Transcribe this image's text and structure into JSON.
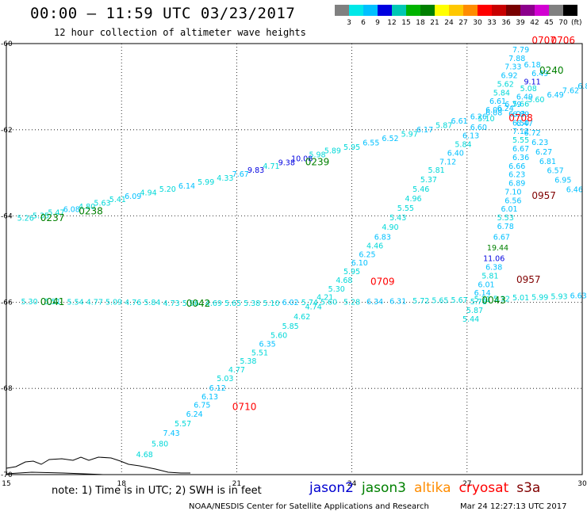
{
  "header": {
    "title": "00:00 – 11:59 UTC 03/23/2017",
    "subtitle": "12 hour collection of altimeter wave heights"
  },
  "legend": {
    "colors": [
      "#808080",
      "#00e8e8",
      "#00c0ff",
      "#0000e0",
      "#00c8b4",
      "#00b400",
      "#008000",
      "#ffff00",
      "#ffc800",
      "#ff8c00",
      "#ff0000",
      "#c80000",
      "#780000",
      "#8c008c",
      "#d200d2",
      "#808080",
      "#000000"
    ],
    "labels": [
      "3",
      "6",
      "9",
      "12",
      "15",
      "18",
      "21",
      "24",
      "27",
      "30",
      "33",
      "36",
      "39",
      "42",
      "45",
      "70"
    ],
    "unit": "(ft)"
  },
  "axes": {
    "lon_labels": [
      {
        "value": "15",
        "lon": 15
      },
      {
        "value": "18",
        "lon": 18
      },
      {
        "value": "21",
        "lon": 21
      },
      {
        "value": "24",
        "lon": 24
      },
      {
        "value": "27",
        "lon": 27
      },
      {
        "value": "30",
        "lon": 30
      }
    ],
    "lat_labels": [
      {
        "value": "-60",
        "lat": -60
      },
      {
        "value": "-62",
        "lat": -62
      },
      {
        "value": "-64",
        "lat": -64
      },
      {
        "value": "-66",
        "lat": -66
      },
      {
        "value": "-68",
        "lat": -68
      },
      {
        "value": "-70",
        "lat": -70
      }
    ]
  },
  "tracks": [
    {
      "satellite": "jason3",
      "points": [
        {
          "lon": 15.5,
          "lat": -64.11,
          "v": "5.26"
        },
        {
          "lon": 15.9,
          "lat": -64.05,
          "v": "5.35"
        },
        {
          "lon": 16.3,
          "lat": -63.98,
          "v": "5.47"
        },
        {
          "lon": 16.7,
          "lat": -63.91,
          "v": "6.08"
        },
        {
          "lon": 17.1,
          "lat": -63.84,
          "v": "4.80"
        },
        {
          "lon": 17.5,
          "lat": -63.76,
          "v": "5.63"
        },
        {
          "lon": 17.9,
          "lat": -63.68,
          "v": "5.41"
        },
        {
          "lon": 18.3,
          "lat": -63.6,
          "v": "6.09"
        },
        {
          "lon": 18.7,
          "lat": -63.52,
          "v": "4.94"
        },
        {
          "lon": 19.2,
          "lat": -63.44,
          "v": "5.20"
        },
        {
          "lon": 19.7,
          "lat": -63.36,
          "v": "6.14"
        },
        {
          "lon": 20.2,
          "lat": -63.27,
          "v": "5.99"
        },
        {
          "lon": 20.7,
          "lat": -63.18,
          "v": "4.33"
        },
        {
          "lon": 21.1,
          "lat": -63.09,
          "v": "7.67"
        },
        {
          "lon": 21.5,
          "lat": -63.0,
          "v": "9.83"
        },
        {
          "lon": 21.9,
          "lat": -62.9,
          "v": "4.71"
        },
        {
          "lon": 22.3,
          "lat": -62.82,
          "v": "9.38"
        },
        {
          "lon": 22.7,
          "lat": -62.73,
          "v": "10.08"
        },
        {
          "lon": 23.1,
          "lat": -62.64,
          "v": "5.98"
        },
        {
          "lon": 23.5,
          "lat": -62.55,
          "v": "5.89"
        },
        {
          "lon": 24.0,
          "lat": -62.46,
          "v": "5.95"
        },
        {
          "lon": 24.5,
          "lat": -62.36,
          "v": "6.55"
        },
        {
          "lon": 25.0,
          "lat": -62.26,
          "v": "6.52"
        },
        {
          "lon": 25.5,
          "lat": -62.16,
          "v": "5.97"
        },
        {
          "lon": 25.9,
          "lat": -62.06,
          "v": "6.17"
        },
        {
          "lon": 26.4,
          "lat": -61.96,
          "v": "5.87"
        },
        {
          "lon": 26.8,
          "lat": -61.86,
          "v": "6.61"
        },
        {
          "lon": 27.3,
          "lat": -61.76,
          "v": "6.26"
        },
        {
          "lon": 27.7,
          "lat": -61.66,
          "v": "6.08"
        },
        {
          "lon": 28.0,
          "lat": -61.56,
          "v": "6.24"
        },
        {
          "lon": 28.4,
          "lat": -61.46,
          "v": "5.66"
        },
        {
          "lon": 28.8,
          "lat": -61.36,
          "v": "5.60"
        },
        {
          "lon": 29.3,
          "lat": -61.25,
          "v": "6.49"
        },
        {
          "lon": 29.7,
          "lat": -61.15,
          "v": "7.62"
        },
        {
          "lon": 30.1,
          "lat": -61.05,
          "v": "6.80"
        }
      ]
    },
    {
      "satellite": "jason3",
      "points": [
        {
          "lon": 15.6,
          "lat": -66.05,
          "v": "5.30"
        },
        {
          "lon": 16.2,
          "lat": -66.05,
          "v": "5.51"
        },
        {
          "lon": 16.8,
          "lat": -66.06,
          "v": "5.54"
        },
        {
          "lon": 17.3,
          "lat": -66.06,
          "v": "4.77"
        },
        {
          "lon": 17.8,
          "lat": -66.06,
          "v": "5.09"
        },
        {
          "lon": 18.3,
          "lat": -66.07,
          "v": "4.76"
        },
        {
          "lon": 18.8,
          "lat": -66.07,
          "v": "5.84"
        },
        {
          "lon": 19.3,
          "lat": -66.08,
          "v": "4.73"
        },
        {
          "lon": 19.8,
          "lat": -66.08,
          "v": "5.96"
        },
        {
          "lon": 20.4,
          "lat": -66.08,
          "v": "4.69"
        },
        {
          "lon": 20.9,
          "lat": -66.08,
          "v": "5.65"
        },
        {
          "lon": 21.4,
          "lat": -66.08,
          "v": "5.38"
        },
        {
          "lon": 21.9,
          "lat": -66.08,
          "v": "5.10"
        },
        {
          "lon": 22.4,
          "lat": -66.07,
          "v": "6.02"
        },
        {
          "lon": 22.9,
          "lat": -66.07,
          "v": "5.74"
        },
        {
          "lon": 23.4,
          "lat": -66.06,
          "v": "5.60"
        },
        {
          "lon": 24.0,
          "lat": -66.06,
          "v": "5.28"
        },
        {
          "lon": 24.6,
          "lat": -66.05,
          "v": "6.34"
        },
        {
          "lon": 25.2,
          "lat": -66.04,
          "v": "6.31"
        },
        {
          "lon": 25.8,
          "lat": -66.03,
          "v": "5.72"
        },
        {
          "lon": 26.3,
          "lat": -66.02,
          "v": "5.65"
        },
        {
          "lon": 26.8,
          "lat": -66.01,
          "v": "5.67"
        },
        {
          "lon": 27.4,
          "lat": -65.99,
          "v": "5.71"
        },
        {
          "lon": 27.9,
          "lat": -65.98,
          "v": "5.32"
        },
        {
          "lon": 28.4,
          "lat": -65.96,
          "v": "5.01"
        },
        {
          "lon": 28.9,
          "lat": -65.95,
          "v": "5.99"
        },
        {
          "lon": 29.4,
          "lat": -65.93,
          "v": "5.93"
        },
        {
          "lon": 29.9,
          "lat": -65.91,
          "v": "6.63"
        }
      ]
    },
    {
      "satellite": "jason3",
      "points": [
        {
          "lon": 18.6,
          "lat": -69.6,
          "v": "4.68"
        },
        {
          "lon": 19.0,
          "lat": -69.35,
          "v": "5.80"
        },
        {
          "lon": 19.3,
          "lat": -69.1,
          "v": "7.43"
        },
        {
          "lon": 19.6,
          "lat": -68.88,
          "v": "5.57"
        },
        {
          "lon": 19.9,
          "lat": -68.66,
          "v": "6.24"
        },
        {
          "lon": 20.1,
          "lat": -68.45,
          "v": "6.75"
        },
        {
          "lon": 20.3,
          "lat": -68.25,
          "v": "6.13"
        },
        {
          "lon": 20.5,
          "lat": -68.05,
          "v": "6.12"
        },
        {
          "lon": 20.7,
          "lat": -67.83,
          "v": "5.03"
        },
        {
          "lon": 21.0,
          "lat": -67.63,
          "v": "4.77"
        },
        {
          "lon": 21.3,
          "lat": -67.43,
          "v": "5.38"
        },
        {
          "lon": 21.6,
          "lat": -67.23,
          "v": "5.51"
        },
        {
          "lon": 21.8,
          "lat": -67.03,
          "v": "6.35"
        },
        {
          "lon": 22.1,
          "lat": -66.83,
          "v": "5.60"
        },
        {
          "lon": 22.4,
          "lat": -66.62,
          "v": "5.85"
        },
        {
          "lon": 22.7,
          "lat": -66.4,
          "v": "4.62"
        },
        {
          "lon": 23.0,
          "lat": -66.17,
          "v": "4.74"
        },
        {
          "lon": 23.3,
          "lat": -65.95,
          "v": "4.21"
        },
        {
          "lon": 23.6,
          "lat": -65.75,
          "v": "5.30"
        },
        {
          "lon": 23.8,
          "lat": -65.55,
          "v": "4.68"
        },
        {
          "lon": 24.0,
          "lat": -65.35,
          "v": "5.95"
        },
        {
          "lon": 24.2,
          "lat": -65.15,
          "v": "6.10"
        },
        {
          "lon": 24.4,
          "lat": -64.95,
          "v": "6.25"
        },
        {
          "lon": 24.6,
          "lat": -64.75,
          "v": "4.46"
        },
        {
          "lon": 24.8,
          "lat": -64.55,
          "v": "6.83"
        },
        {
          "lon": 25.0,
          "lat": -64.32,
          "v": "4.90"
        },
        {
          "lon": 25.2,
          "lat": -64.1,
          "v": "5.43"
        },
        {
          "lon": 25.4,
          "lat": -63.88,
          "v": "5.55"
        },
        {
          "lon": 25.6,
          "lat": -63.66,
          "v": "4.96"
        },
        {
          "lon": 25.8,
          "lat": -63.44,
          "v": "5.46"
        },
        {
          "lon": 26.0,
          "lat": -63.22,
          "v": "5.37"
        },
        {
          "lon": 26.2,
          "lat": -63.0,
          "v": "5.81"
        },
        {
          "lon": 26.5,
          "lat": -62.8,
          "v": "7.12"
        },
        {
          "lon": 26.7,
          "lat": -62.6,
          "v": "6.40"
        },
        {
          "lon": 26.9,
          "lat": -62.4,
          "v": "5.84"
        },
        {
          "lon": 27.1,
          "lat": -62.2,
          "v": "6.13"
        },
        {
          "lon": 27.3,
          "lat": -62.0,
          "v": "6.60"
        },
        {
          "lon": 27.5,
          "lat": -61.8,
          "v": "5.10"
        },
        {
          "lon": 27.7,
          "lat": -61.6,
          "v": "6.00"
        },
        {
          "lon": 27.8,
          "lat": -61.4,
          "v": "6.61"
        },
        {
          "lon": 27.9,
          "lat": -61.2,
          "v": "5.84"
        },
        {
          "lon": 28.0,
          "lat": -61.0,
          "v": "5.62"
        },
        {
          "lon": 28.1,
          "lat": -60.8,
          "v": "6.92"
        },
        {
          "lon": 28.2,
          "lat": -60.6,
          "v": "7.33"
        },
        {
          "lon": 28.3,
          "lat": -60.4,
          "v": "7.88"
        },
        {
          "lon": 28.4,
          "lat": -60.2,
          "v": "7.79"
        }
      ]
    },
    {
      "satellite": "jason3",
      "points": [
        {
          "lon": 29.8,
          "lat": -63.45,
          "v": "6.46"
        },
        {
          "lon": 29.5,
          "lat": -63.23,
          "v": "6.95"
        },
        {
          "lon": 29.3,
          "lat": -63.01,
          "v": "6.57"
        },
        {
          "lon": 29.1,
          "lat": -62.79,
          "v": "6.81"
        },
        {
          "lon": 29.0,
          "lat": -62.57,
          "v": "6.27"
        },
        {
          "lon": 28.9,
          "lat": -62.35,
          "v": "6.23"
        },
        {
          "lon": 28.7,
          "lat": -62.13,
          "v": "6.72"
        },
        {
          "lon": 28.5,
          "lat": -61.91,
          "v": "6.47"
        },
        {
          "lon": 28.3,
          "lat": -61.69,
          "v": "6.03"
        },
        {
          "lon": 28.2,
          "lat": -61.47,
          "v": "6.79"
        },
        {
          "lon": 28.7,
          "lat": -60.95,
          "v": "9.11"
        },
        {
          "lon": 28.9,
          "lat": -60.75,
          "v": "6.49"
        }
      ]
    },
    {
      "satellite": "jason3",
      "points": [
        {
          "lon": 27.1,
          "lat": -66.45,
          "v": "5.44"
        },
        {
          "lon": 27.2,
          "lat": -66.25,
          "v": "5.87"
        },
        {
          "lon": 27.3,
          "lat": -66.05,
          "v": "5.78"
        },
        {
          "lon": 27.4,
          "lat": -65.85,
          "v": "6.14"
        },
        {
          "lon": 27.5,
          "lat": -65.65,
          "v": "6.01"
        },
        {
          "lon": 27.6,
          "lat": -65.45,
          "v": "5.81"
        },
        {
          "lon": 27.7,
          "lat": -65.25,
          "v": "6.38"
        },
        {
          "lon": 27.7,
          "lat": -65.05,
          "v": "11.06"
        },
        {
          "lon": 27.8,
          "lat": -64.8,
          "v": "19.44"
        },
        {
          "lon": 27.9,
          "lat": -64.55,
          "v": "6.67"
        },
        {
          "lon": 28.0,
          "lat": -64.3,
          "v": "6.78"
        },
        {
          "lon": 28.0,
          "lat": -64.1,
          "v": "5.53"
        },
        {
          "lon": 28.1,
          "lat": -63.9,
          "v": "6.01"
        },
        {
          "lon": 28.2,
          "lat": -63.7,
          "v": "6.56"
        },
        {
          "lon": 28.2,
          "lat": -63.5,
          "v": "7.10"
        },
        {
          "lon": 28.3,
          "lat": -63.3,
          "v": "6.89"
        },
        {
          "lon": 28.3,
          "lat": -63.1,
          "v": "6.23"
        },
        {
          "lon": 28.3,
          "lat": -62.9,
          "v": "6.66"
        },
        {
          "lon": 28.4,
          "lat": -62.7,
          "v": "6.36"
        },
        {
          "lon": 28.4,
          "lat": -62.5,
          "v": "6.67"
        },
        {
          "lon": 28.4,
          "lat": -62.3,
          "v": "5.55"
        },
        {
          "lon": 28.4,
          "lat": -62.1,
          "v": "7.12"
        },
        {
          "lon": 28.4,
          "lat": -61.9,
          "v": "6.50"
        },
        {
          "lon": 28.4,
          "lat": -61.7,
          "v": "6.89"
        },
        {
          "lon": 28.5,
          "lat": -61.3,
          "v": "6.49"
        },
        {
          "lon": 28.6,
          "lat": -61.1,
          "v": "5.08"
        },
        {
          "lon": 28.7,
          "lat": -60.55,
          "v": "6.18"
        }
      ]
    }
  ],
  "time_labels": [
    {
      "text": "0237",
      "satellite": "jason3",
      "lon": 16.2,
      "lat": -64.12
    },
    {
      "text": "0238",
      "satellite": "jason3",
      "lon": 17.2,
      "lat": -63.96
    },
    {
      "text": "0239",
      "satellite": "jason3",
      "lon": 23.1,
      "lat": -62.82
    },
    {
      "text": "0240",
      "satellite": "jason3",
      "lon": 29.2,
      "lat": -60.7
    },
    {
      "text": "0041",
      "satellite": "jason3",
      "lon": 16.2,
      "lat": -66.07
    },
    {
      "text": "0042",
      "satellite": "jason3",
      "lon": 20.0,
      "lat": -66.1
    },
    {
      "text": "0043",
      "satellite": "jason3",
      "lon": 27.7,
      "lat": -66.03
    },
    {
      "text": "0708",
      "satellite": "cryosat",
      "lon": 28.4,
      "lat": -61.8
    },
    {
      "text": "0707",
      "satellite": "cryosat",
      "lon": 29.0,
      "lat": -60.0
    },
    {
      "text": "0706",
      "satellite": "cryosat",
      "lon": 29.5,
      "lat": -60.0
    },
    {
      "text": "0709",
      "satellite": "cryosat",
      "lon": 24.8,
      "lat": -65.6
    },
    {
      "text": "0710",
      "satellite": "cryosat",
      "lon": 21.2,
      "lat": -68.5
    },
    {
      "text": "0957",
      "satellite": "s3a",
      "lon": 29.0,
      "lat": -63.6
    },
    {
      "text": "0957",
      "satellite": "s3a",
      "lon": 28.6,
      "lat": -65.55
    }
  ],
  "footer": {
    "note": "note: 1) Time is in UTC; 2) SWH is in feet",
    "satellites": [
      {
        "name": "jason2",
        "color": "#0000d0"
      },
      {
        "name": "jason3",
        "color": "#008000"
      },
      {
        "name": "altika",
        "color": "#ff8c00"
      },
      {
        "name": "cryosat",
        "color": "#ff0000"
      },
      {
        "name": "s3a",
        "color": "#800000"
      }
    ],
    "credit": "NOAA/NESDIS Center for Satellite Applications and Research",
    "timestamp": "Mar 24 12:27:13 UTC 2017"
  }
}
